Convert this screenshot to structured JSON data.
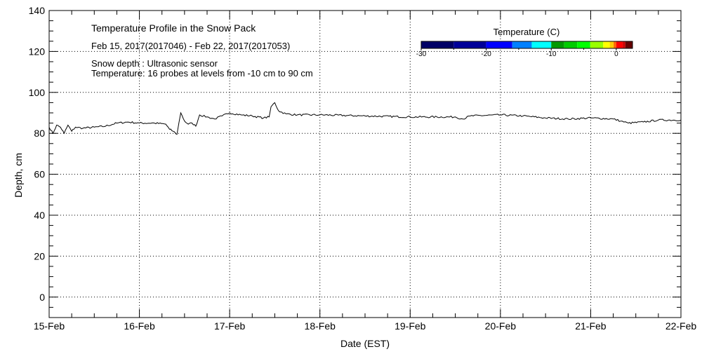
{
  "chart_data": {
    "type": "line",
    "title": "Temperature Profile in the Snow Pack",
    "subtitle": "Feb 15, 2017(2017046) - Feb 22, 2017(2017053)",
    "annotations": [
      "Snow depth : Ultrasonic sensor",
      "Temperature: 16 probes at levels from -10 cm to 90 cm"
    ],
    "xlabel": "Date (EST)",
    "ylabel": "Depth, cm",
    "xlim": [
      "2017-02-15 00:00",
      "2017-02-22 00:00"
    ],
    "ylim": [
      -10,
      140
    ],
    "x_tick_labels": [
      "15-Feb",
      "16-Feb",
      "17-Feb",
      "18-Feb",
      "19-Feb",
      "20-Feb",
      "21-Feb",
      "22-Feb"
    ],
    "y_ticks": [
      0,
      20,
      40,
      60,
      80,
      100,
      120,
      140
    ],
    "grid": true,
    "line_color": "#000000",
    "series": [
      {
        "points": [
          [
            "2017-02-15 00:00",
            83
          ],
          [
            "2017-02-15 01:00",
            80
          ],
          [
            "2017-02-15 02:00",
            84
          ],
          [
            "2017-02-15 03:00",
            83
          ],
          [
            "2017-02-15 04:00",
            80
          ],
          [
            "2017-02-15 05:00",
            84
          ],
          [
            "2017-02-15 06:00",
            81
          ],
          [
            "2017-02-15 07:00",
            83
          ],
          [
            "2017-02-15 09:00",
            82.5
          ],
          [
            "2017-02-15 12:00",
            83
          ],
          [
            "2017-02-15 15:00",
            83.5
          ],
          [
            "2017-02-15 18:00",
            85
          ],
          [
            "2017-02-15 21:00",
            85.5
          ],
          [
            "2017-02-16 00:00",
            85
          ],
          [
            "2017-02-16 04:00",
            85
          ],
          [
            "2017-02-16 07:00",
            84.5
          ],
          [
            "2017-02-16 08:00",
            82
          ],
          [
            "2017-02-16 09:00",
            81
          ],
          [
            "2017-02-16 10:00",
            79.5
          ],
          [
            "2017-02-16 10:30",
            85
          ],
          [
            "2017-02-16 11:00",
            90
          ],
          [
            "2017-02-16 12:00",
            86
          ],
          [
            "2017-02-16 13:00",
            84.5
          ],
          [
            "2017-02-16 14:00",
            85
          ],
          [
            "2017-02-16 15:00",
            83.5
          ],
          [
            "2017-02-16 16:00",
            89
          ],
          [
            "2017-02-16 18:00",
            88
          ],
          [
            "2017-02-16 20:00",
            87
          ],
          [
            "2017-02-16 22:00",
            88.5
          ],
          [
            "2017-02-17 00:00",
            90
          ],
          [
            "2017-02-17 03:00",
            89
          ],
          [
            "2017-02-17 06:00",
            88.5
          ],
          [
            "2017-02-17 09:00",
            87.5
          ],
          [
            "2017-02-17 10:30",
            88
          ],
          [
            "2017-02-17 11:00",
            93
          ],
          [
            "2017-02-17 12:00",
            95
          ],
          [
            "2017-02-17 13:00",
            91
          ],
          [
            "2017-02-17 15:00",
            89.5
          ],
          [
            "2017-02-17 18:00",
            89
          ],
          [
            "2017-02-18 00:00",
            89
          ],
          [
            "2017-02-18 12:00",
            88.5
          ],
          [
            "2017-02-19 00:00",
            88
          ],
          [
            "2017-02-19 12:00",
            88
          ],
          [
            "2017-02-19 14:00",
            87
          ],
          [
            "2017-02-19 16:00",
            88.5
          ],
          [
            "2017-02-20 00:00",
            89
          ],
          [
            "2017-02-20 06:00",
            88.5
          ],
          [
            "2017-02-20 12:00",
            87.5
          ],
          [
            "2017-02-20 18:00",
            87
          ],
          [
            "2017-02-21 00:00",
            87.5
          ],
          [
            "2017-02-21 06:00",
            87
          ],
          [
            "2017-02-21 08:00",
            86
          ],
          [
            "2017-02-21 10:00",
            85
          ],
          [
            "2017-02-21 14:00",
            85.5
          ],
          [
            "2017-02-21 18:00",
            86.5
          ],
          [
            "2017-02-22 00:00",
            86.5
          ]
        ]
      }
    ],
    "colorbar": {
      "title": "Temperature (C)",
      "range": [
        -30,
        2.5
      ],
      "tick_labels": [
        "-30",
        "-20",
        "-10",
        "0"
      ],
      "ticks": [
        -30,
        -20,
        -10,
        0
      ],
      "segments": [
        {
          "from": -30,
          "to": -25,
          "color": "#000066"
        },
        {
          "from": -25,
          "to": -20,
          "color": "#000099"
        },
        {
          "from": -20,
          "to": -16,
          "color": "#0000ff"
        },
        {
          "from": -16,
          "to": -13,
          "color": "#0080ff"
        },
        {
          "from": -13,
          "to": -10,
          "color": "#00ffff"
        },
        {
          "from": -10,
          "to": -8,
          "color": "#009900"
        },
        {
          "from": -8,
          "to": -6,
          "color": "#00cc00"
        },
        {
          "from": -6,
          "to": -4,
          "color": "#00ff00"
        },
        {
          "from": -4,
          "to": -2,
          "color": "#99ff00"
        },
        {
          "from": -2,
          "to": -1,
          "color": "#ffff00"
        },
        {
          "from": -1,
          "to": -0.4,
          "color": "#ffcc00"
        },
        {
          "from": -0.4,
          "to": 0,
          "color": "#ff6600"
        },
        {
          "from": 0,
          "to": 1,
          "color": "#ff0000"
        },
        {
          "from": 1,
          "to": 1.4,
          "color": "#cc0000"
        },
        {
          "from": 1.4,
          "to": 2.5,
          "color": "#660000"
        }
      ]
    }
  }
}
